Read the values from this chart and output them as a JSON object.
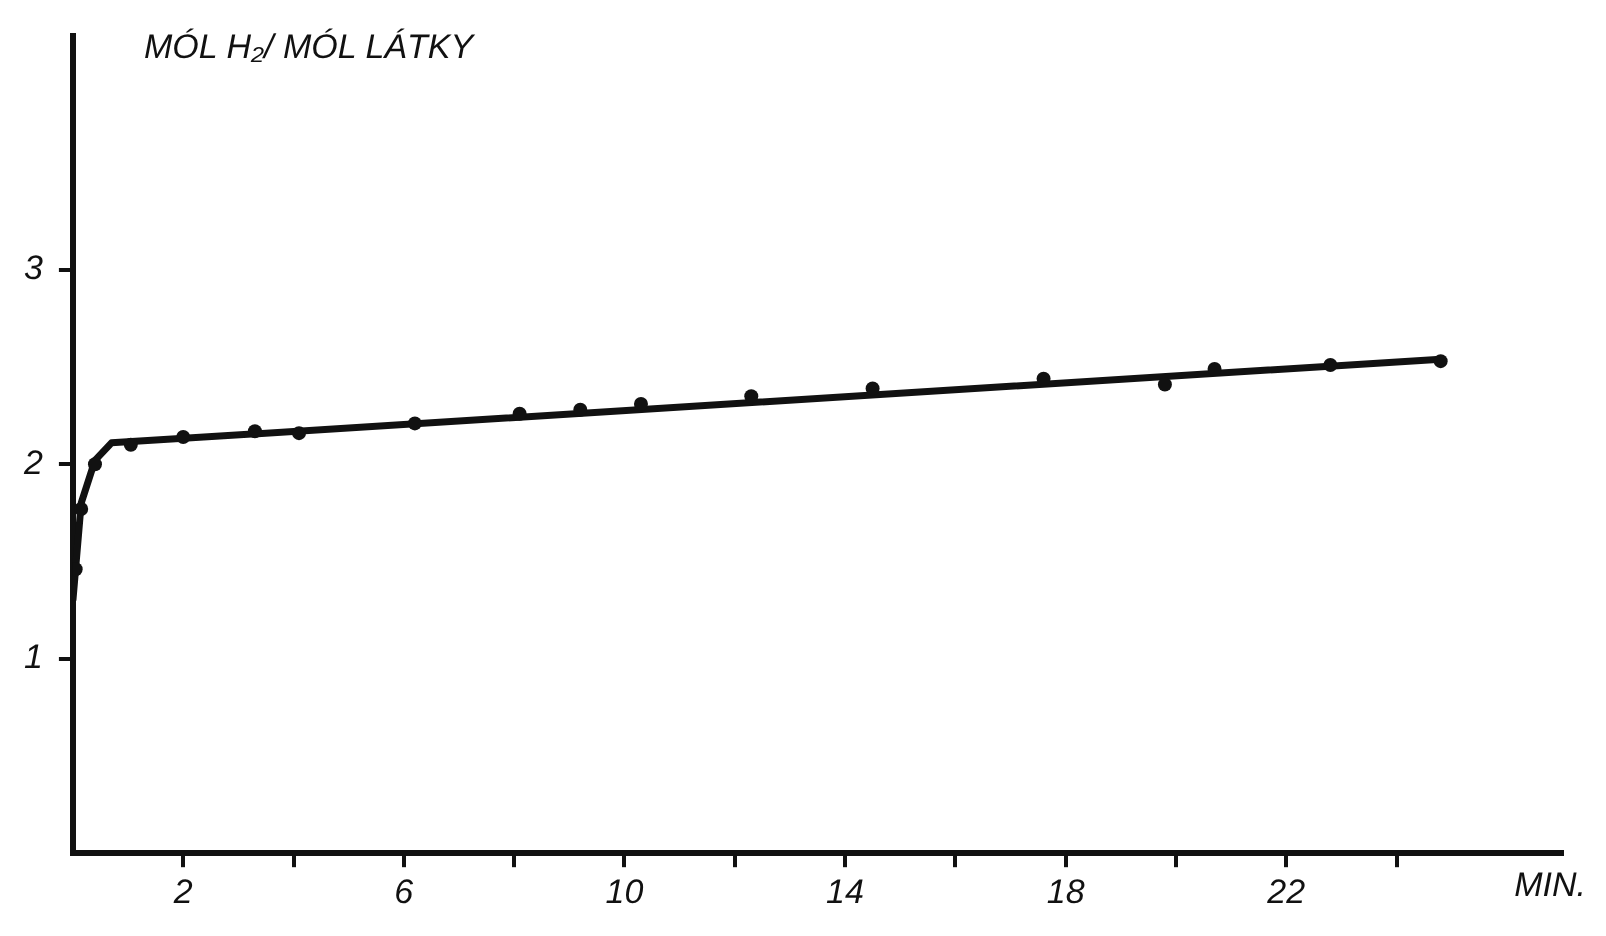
{
  "chart_data": {
    "type": "line",
    "ylabel": "MÓL H₂/ MÓL LÁTKY",
    "xlabel": "MIN.",
    "xlim": [
      0,
      27
    ],
    "ylim": [
      0,
      4.2
    ],
    "xticks": [
      2,
      {
        "value": 4,
        "label": null
      },
      6,
      {
        "value": 8,
        "label": null
      },
      10,
      {
        "value": 12,
        "label": null
      },
      14,
      {
        "value": 16,
        "label": null
      },
      18,
      {
        "value": 20,
        "label": null
      },
      22,
      {
        "value": 24,
        "label": null
      }
    ],
    "yticks": [
      1,
      2,
      3
    ],
    "grid": false,
    "legend": false,
    "series": [
      {
        "color": "#111111",
        "marker": "none",
        "x": [
          0,
          0.15,
          0.4,
          0.7,
          24.8
        ],
        "values": [
          1.3,
          1.8,
          2.02,
          2.11,
          2.54
        ]
      },
      {
        "type": "scatter",
        "color": "#111111",
        "marker": "circle",
        "x": [
          0.05,
          0.15,
          0.4,
          1.05,
          2,
          3.3,
          4.1,
          6.2,
          8.1,
          9.2,
          10.3,
          12.3,
          14.5,
          17.6,
          19.8,
          20.7,
          22.8,
          24.8
        ],
        "values": [
          1.46,
          1.77,
          2.0,
          2.1,
          2.14,
          2.17,
          2.16,
          2.21,
          2.26,
          2.28,
          2.31,
          2.35,
          2.39,
          2.44,
          2.41,
          2.49,
          2.51,
          2.53
        ]
      }
    ]
  }
}
